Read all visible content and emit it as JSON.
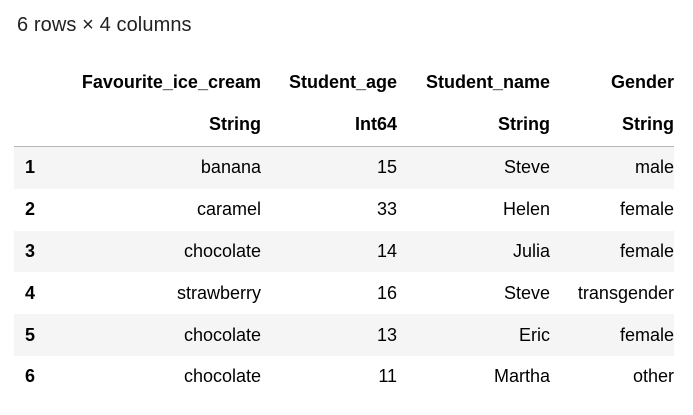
{
  "summary": "6 rows × 4 columns",
  "table": {
    "columns": [
      {
        "name": "Favourite_ice_cream",
        "type": "String"
      },
      {
        "name": "Student_age",
        "type": "Int64"
      },
      {
        "name": "Student_name",
        "type": "String"
      },
      {
        "name": "Gender",
        "type": "String"
      }
    ],
    "rows": [
      {
        "index": "1",
        "cells": [
          "banana",
          "15",
          "Steve",
          "male"
        ]
      },
      {
        "index": "2",
        "cells": [
          "caramel",
          "33",
          "Helen",
          "female"
        ]
      },
      {
        "index": "3",
        "cells": [
          "chocolate",
          "14",
          "Julia",
          "female"
        ]
      },
      {
        "index": "4",
        "cells": [
          "strawberry",
          "16",
          "Steve",
          "transgender"
        ]
      },
      {
        "index": "5",
        "cells": [
          "chocolate",
          "13",
          "Eric",
          "female"
        ]
      },
      {
        "index": "6",
        "cells": [
          "chocolate",
          "11",
          "Martha",
          "other"
        ]
      }
    ]
  }
}
